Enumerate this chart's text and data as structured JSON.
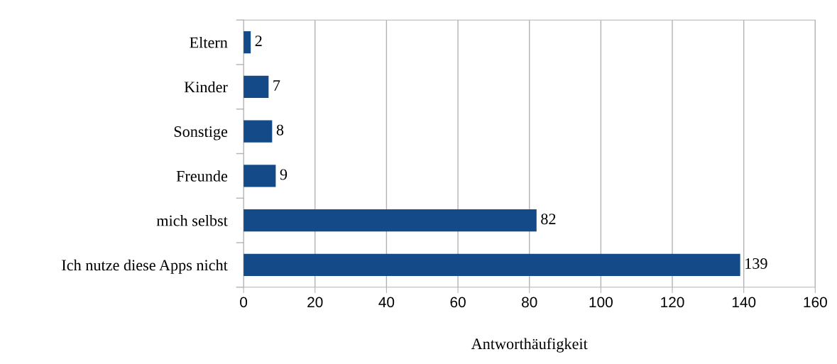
{
  "chart_data": {
    "type": "bar",
    "orientation": "horizontal",
    "categories": [
      "Eltern",
      "Kinder",
      "Sonstige",
      "Freunde",
      "mich selbst",
      "Ich nutze diese Apps nicht"
    ],
    "values": [
      2,
      7,
      8,
      9,
      82,
      139
    ],
    "color": "#134a87",
    "xlim": [
      0,
      160
    ],
    "xticks": [
      0,
      20,
      40,
      60,
      80,
      100,
      120,
      140,
      160
    ],
    "xlabel": "Antworthäufigkeit",
    "grid": "x",
    "data_labels": true
  }
}
